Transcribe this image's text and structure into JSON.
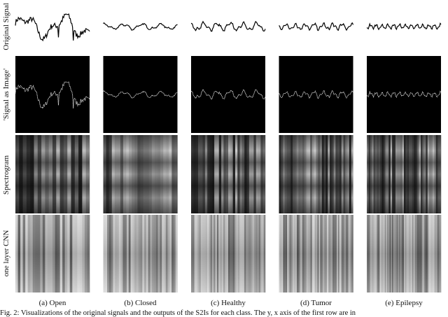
{
  "row_labels": [
    "Original Signal",
    "'Signal as Image'",
    "Spectrogram",
    "one layer CNN"
  ],
  "columns": [
    "(a) Open",
    "(b) Closed",
    "(c) Healthy",
    "(d) Tumor",
    "(e) Epilepsy"
  ],
  "caption": "Fig. 2: Visualizations of the original signals and the outputs of the S2Is for each class. The y, x axis of the first row are in"
}
